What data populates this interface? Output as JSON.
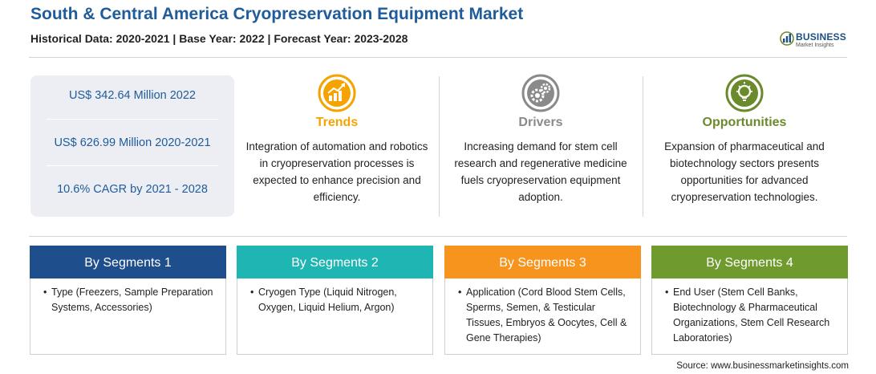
{
  "header": {
    "title": "South & Central America Cryopreservation Equipment Market",
    "subtitle": "Historical Data: 2020-2021 | Base Year: 2022 | Forecast Year: 2023-2028"
  },
  "logo": {
    "name": "BUSINESS",
    "tagline": "Market Insights"
  },
  "stats": [
    "US$ 342.64 Million 2022",
    "US$ 626.99 Million 2020-2021",
    "10.6% CAGR by 2021 - 2028"
  ],
  "columns": [
    {
      "title": "Trends",
      "icon": "rising-chart-icon",
      "color": "#f5a300",
      "text": "Integration of automation and robotics in cryopreservation processes is expected to enhance precision and efficiency."
    },
    {
      "title": "Drivers",
      "icon": "gears-icon",
      "color": "#8a8a8a",
      "text": "Increasing demand for stem cell research and regenerative medicine fuels cryopreservation equipment adoption."
    },
    {
      "title": "Opportunities",
      "icon": "lightbulb-icon",
      "color": "#6b8a2c",
      "text": "Expansion of pharmaceutical and biotechnology sectors presents opportunities for advanced cryopreservation technologies."
    }
  ],
  "segments": [
    {
      "title": "By Segments 1",
      "color": "#1f4e8c",
      "bullet": "Type (Freezers, Sample Preparation Systems, Accessories)"
    },
    {
      "title": "By Segments 2",
      "color": "#1fb5b3",
      "bullet": "Cryogen Type (Liquid Nitrogen, Oxygen, Liquid Helium, Argon)"
    },
    {
      "title": "By Segments 3",
      "color": "#f7941d",
      "bullet": "Application (Cord Blood Stem Cells, Sperms, Semen, & Testicular Tissues, Embryos & Oocytes, Cell & Gene Therapies)"
    },
    {
      "title": "By Segments 4",
      "color": "#6f9a2e",
      "bullet": "End User (Stem Cell Banks, Biotechnology & Pharmaceutical Organizations, Stem Cell Research Laboratories)"
    }
  ],
  "source": "Source: www.businessmarketinsights.com"
}
